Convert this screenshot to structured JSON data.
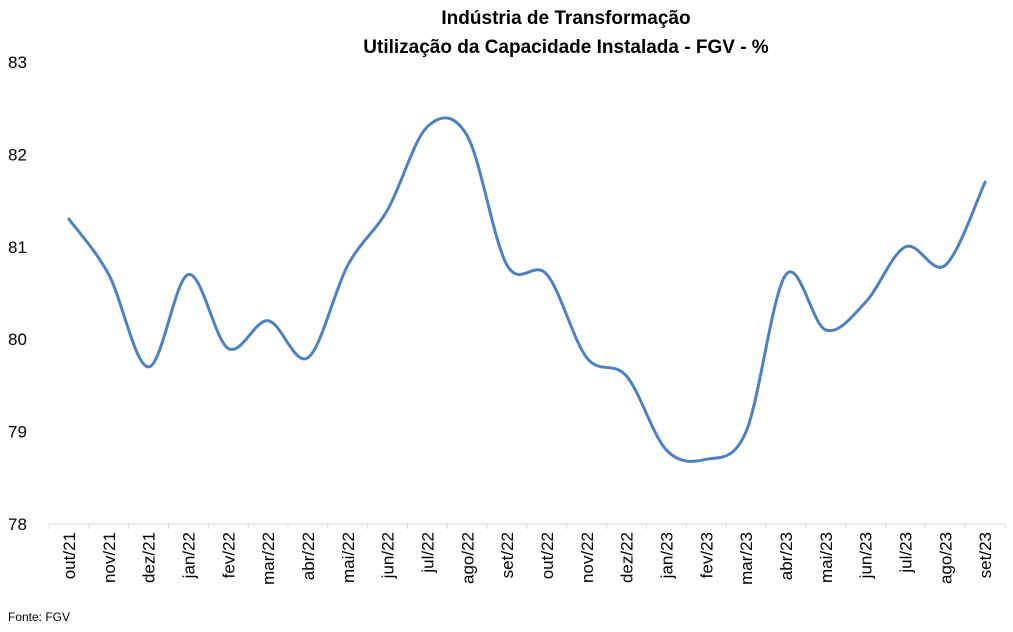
{
  "chart_data": {
    "type": "line",
    "title": "Indústria de Transformação",
    "subtitle": "Utilização da Capacidade Instalada - FGV - %",
    "xlabel": "",
    "ylabel": "",
    "ylim": [
      78,
      83
    ],
    "yticks": [
      "78",
      "79",
      "80",
      "81",
      "82",
      "83"
    ],
    "categories": [
      "out/21",
      "nov/21",
      "dez/21",
      "jan/22",
      "fev/22",
      "mar/22",
      "abr/22",
      "mai/22",
      "jun/22",
      "jul/22",
      "ago/22",
      "set/22",
      "out/22",
      "nov/22",
      "dez/22",
      "jan/23",
      "fev/23",
      "mar/23",
      "abr/23",
      "mai/23",
      "jun/23",
      "jul/23",
      "ago/23",
      "set/23"
    ],
    "series": [
      {
        "color": "#4f81bd",
        "values": [
          81.3,
          80.7,
          79.7,
          80.7,
          79.9,
          80.2,
          79.8,
          80.8,
          81.4,
          82.3,
          82.2,
          80.8,
          80.7,
          79.8,
          79.6,
          78.8,
          78.7,
          79.0,
          80.7,
          80.1,
          80.4,
          81.0,
          80.8,
          81.7
        ]
      }
    ],
    "grid": false,
    "legend": "none",
    "source": "Fonte: FGV"
  }
}
